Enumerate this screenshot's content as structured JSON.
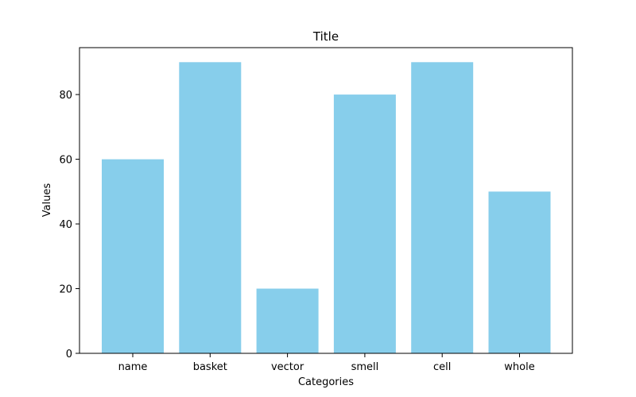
{
  "chart_data": {
    "type": "bar",
    "title": "Title",
    "xlabel": "Categories",
    "ylabel": "Values",
    "categories": [
      "name",
      "basket",
      "vector",
      "smell",
      "cell",
      "whole"
    ],
    "values": [
      60,
      90,
      20,
      80,
      90,
      50
    ],
    "ylim": [
      0,
      94.5
    ],
    "yticks": [
      0,
      20,
      40,
      60,
      80
    ],
    "grid": false,
    "bar_color": "#87CEEB"
  }
}
